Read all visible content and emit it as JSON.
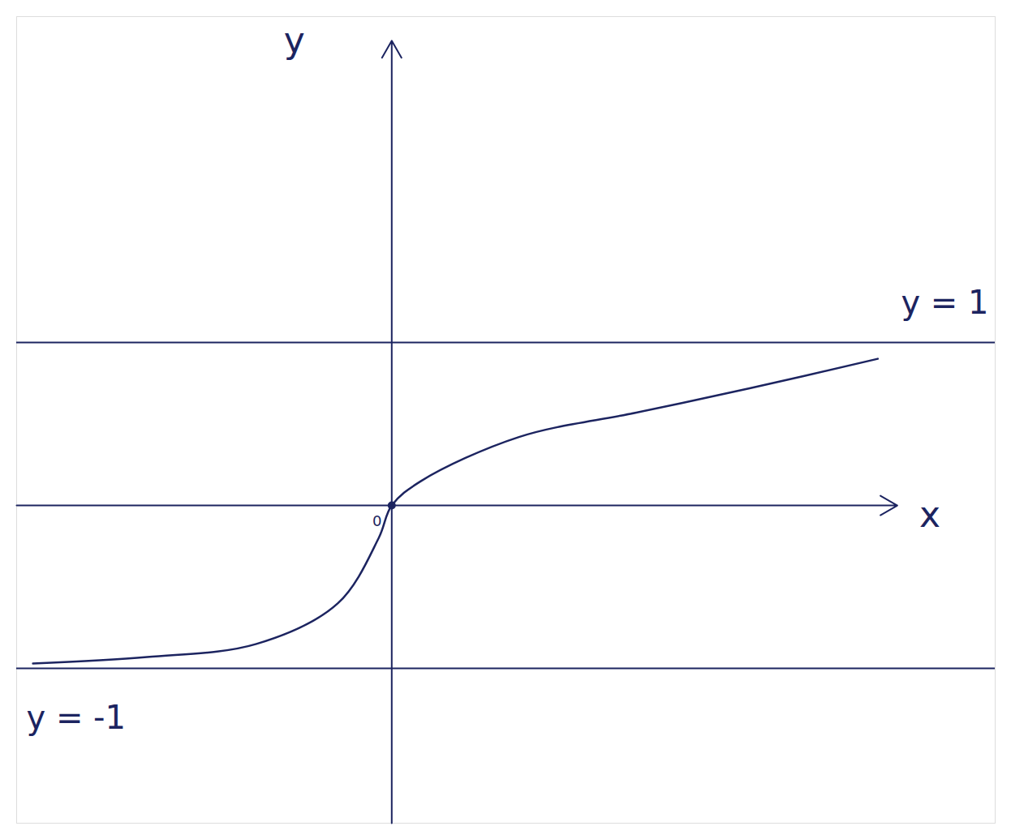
{
  "chart_data": {
    "type": "line",
    "x_label": "x",
    "y_label": "y",
    "x": [
      -2.2,
      -1.5,
      -0.83,
      -0.33,
      -0.08,
      0,
      0.18,
      0.78,
      1.5,
      2.2,
      2.98
    ],
    "values": [
      -0.97,
      -0.93,
      -0.85,
      -0.6,
      -0.2,
      0,
      0.15,
      0.42,
      0.57,
      0.72,
      0.9
    ],
    "color": "#1c2460",
    "xlim": [
      -2.3,
      3.7
    ],
    "ylim": [
      -1.95,
      3.0
    ],
    "tick_labels": false,
    "grid": false,
    "origin_label": "0",
    "asymptotes": [
      {
        "y": 1,
        "label": "y = 1"
      },
      {
        "y": -1,
        "label": "y = -1"
      }
    ]
  }
}
